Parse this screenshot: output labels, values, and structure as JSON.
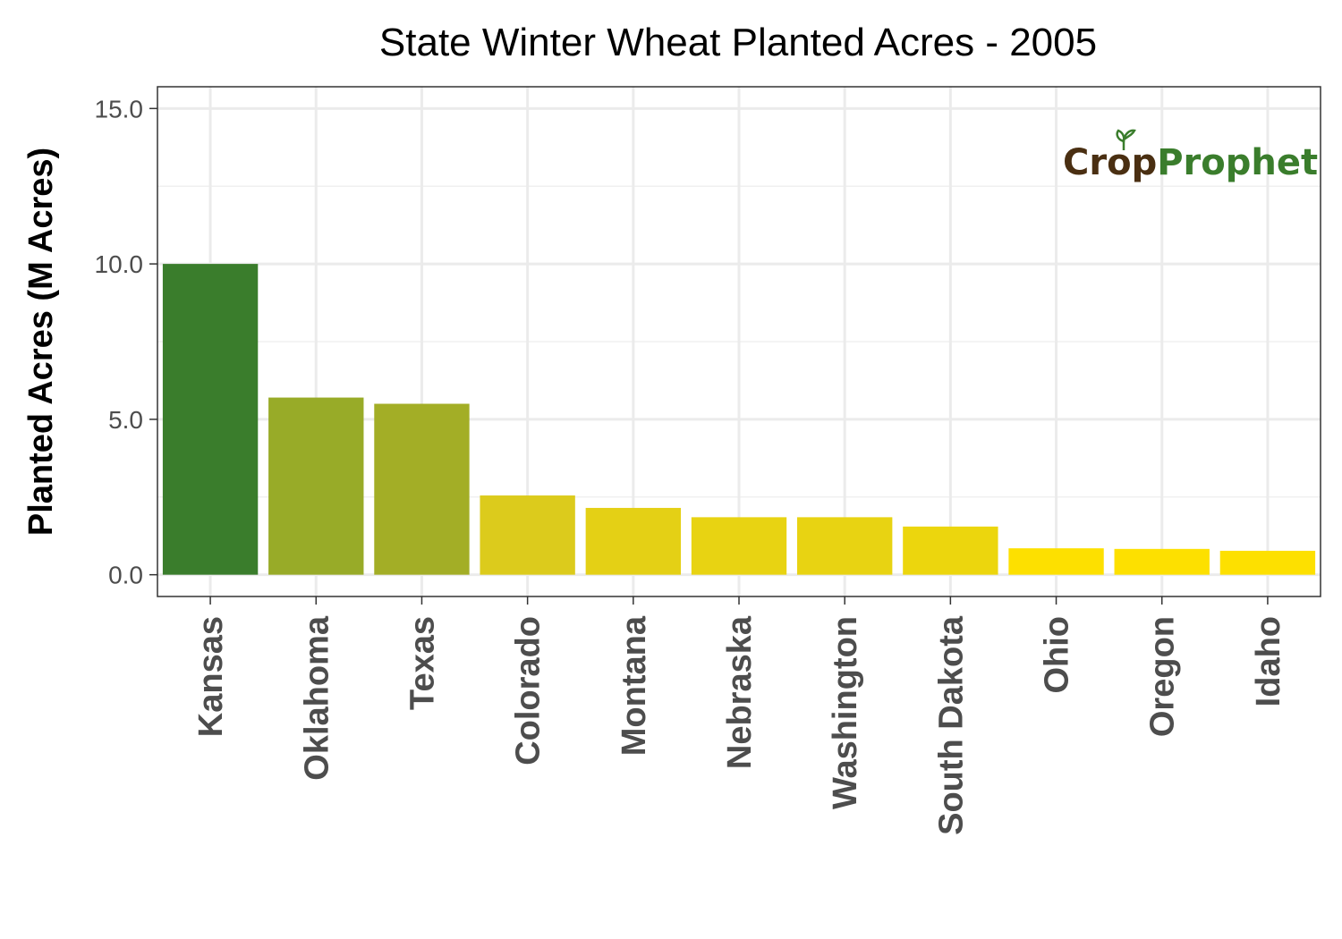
{
  "chart_data": {
    "type": "bar",
    "title": "State Winter Wheat Planted Acres - 2005",
    "ylabel": "Planted Acres (M Acres)",
    "xlabel": "",
    "categories": [
      "Kansas",
      "Oklahoma",
      "Texas",
      "Colorado",
      "Montana",
      "Nebraska",
      "Washington",
      "South Dakota",
      "Ohio",
      "Oregon",
      "Idaho"
    ],
    "values": [
      10.0,
      5.7,
      5.5,
      2.55,
      2.15,
      1.85,
      1.85,
      1.55,
      0.85,
      0.83,
      0.77
    ],
    "colors": [
      "#3a7d2c",
      "#98ab28",
      "#a3ae26",
      "#dccb1c",
      "#e4d015",
      "#e8d312",
      "#e8d312",
      "#ecd60d",
      "#fde000",
      "#fde000",
      "#fde000"
    ],
    "ylim": [
      -0.7,
      15.7
    ],
    "yticks": [
      "0.0",
      "5.0",
      "10.0",
      "15.0"
    ],
    "grid": true,
    "legend": "none"
  },
  "logo": {
    "part1": "Crop",
    "part2": "Prophet"
  }
}
